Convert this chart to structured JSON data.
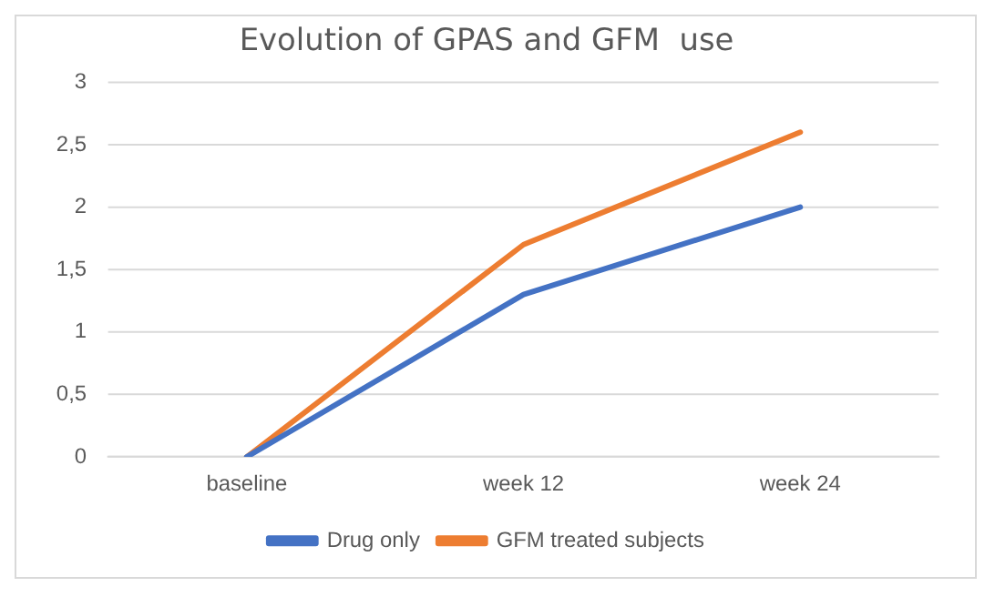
{
  "chart_data": {
    "type": "line",
    "title": "Evolution of GPAS and GFM  use",
    "categories": [
      "baseline",
      "week 12",
      "week 24"
    ],
    "series": [
      {
        "name": "Drug only",
        "color": "#4472c4",
        "values": [
          0,
          1.3,
          2.0
        ]
      },
      {
        "name": "GFM treated subjects",
        "color": "#ed7d31",
        "values": [
          0,
          1.7,
          2.6
        ]
      }
    ],
    "ylim": [
      0,
      3
    ],
    "yticks": [
      0,
      {
        "value": 0.5,
        "label": "0,5"
      },
      1,
      {
        "value": 1.5,
        "label": "1,5"
      },
      2,
      {
        "value": 2.5,
        "label": "2,5"
      },
      3
    ],
    "grid": "y",
    "legend": "bottom",
    "marker": "none",
    "line_style": "solid"
  }
}
